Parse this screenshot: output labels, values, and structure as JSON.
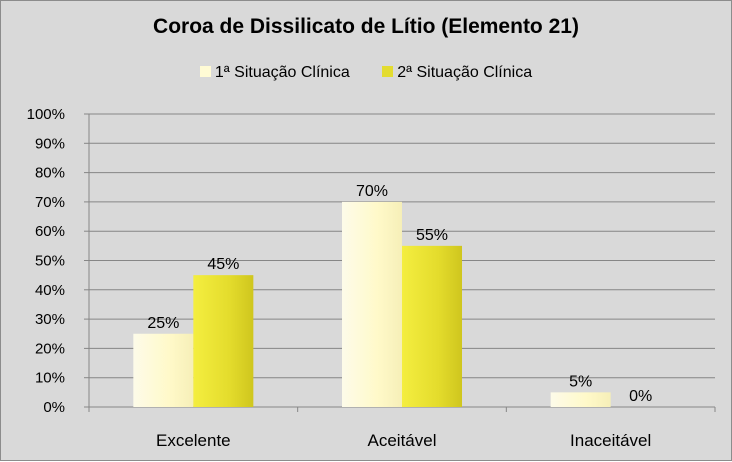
{
  "chart_data": {
    "type": "bar",
    "title": "Coroa de Dissilicato  de Lítio (Elemento 21)",
    "categories": [
      "Excelente",
      "Aceitável",
      "Inaceitável"
    ],
    "series": [
      {
        "name": "1ª Situação  Clínica",
        "values": [
          25,
          70,
          5
        ],
        "labels": [
          "25%",
          "70%",
          "5%"
        ],
        "color": "#fffbd5"
      },
      {
        "name": "2ª Situação  Clínica",
        "values": [
          45,
          55,
          0
        ],
        "labels": [
          "45%",
          "55%",
          "0%"
        ],
        "color": "#e3dc30"
      }
    ],
    "ylim": [
      0,
      100
    ],
    "yticks": [
      "0%",
      "10%",
      "20%",
      "30%",
      "40%",
      "50%",
      "60%",
      "70%",
      "80%",
      "90%",
      "100%"
    ],
    "grid": true,
    "legend_position": "top"
  }
}
